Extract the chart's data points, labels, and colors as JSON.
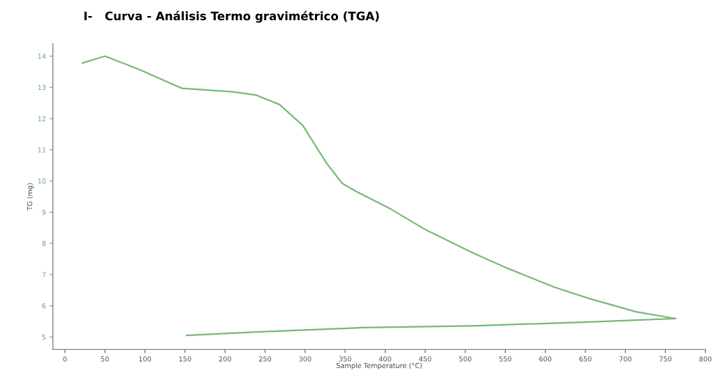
{
  "chart_data": {
    "type": "line",
    "title": "I-   Curva - Análisis Termo gravimétrico (TGA)",
    "xlabel": "Sample Temperature (°C)",
    "ylabel": "TG (mg)",
    "series": [
      {
        "color": "#78b878",
        "x": [
          22,
          50,
          93,
          146,
          209,
          239,
          268,
          297,
          326,
          346,
          364,
          407,
          451,
          510,
          553,
          611,
          654,
          713,
          763,
          654,
          510,
          373,
          239,
          152
        ],
        "values": [
          13.78,
          14.0,
          13.57,
          12.97,
          12.86,
          12.75,
          12.45,
          11.78,
          10.6,
          9.93,
          9.66,
          9.1,
          8.43,
          7.69,
          7.2,
          6.6,
          6.24,
          5.81,
          5.59,
          5.48,
          5.36,
          5.3,
          5.16,
          5.05
        ]
      }
    ],
    "xlim": [
      -15,
      800
    ],
    "ylim": [
      4.6,
      14.4
    ],
    "xticks": [
      0,
      50,
      100,
      150,
      200,
      250,
      300,
      350,
      400,
      450,
      500,
      550,
      600,
      650,
      700,
      750,
      800
    ],
    "yticks": [
      5,
      6,
      7,
      8,
      9,
      10,
      11,
      12,
      13,
      14
    ],
    "grid": false,
    "legend": false
  }
}
